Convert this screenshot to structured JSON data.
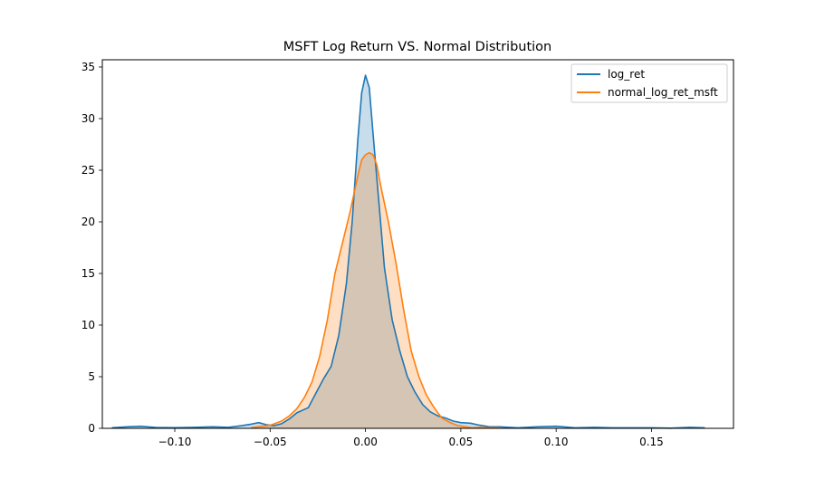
{
  "chart_data": {
    "type": "area",
    "title": "MSFT Log Return VS. Normal Distribution",
    "xlabel": "",
    "ylabel": "",
    "xlim": [
      -0.138,
      0.193
    ],
    "ylim": [
      0,
      35.7
    ],
    "x_ticks": [
      -0.1,
      -0.05,
      0.0,
      0.05,
      0.1,
      0.15
    ],
    "x_tick_labels": [
      "−0.10",
      "−0.05",
      "0.00",
      "0.05",
      "0.10",
      "0.15"
    ],
    "y_ticks": [
      0,
      5,
      10,
      15,
      20,
      25,
      30,
      35
    ],
    "y_tick_labels": [
      "0",
      "5",
      "10",
      "15",
      "20",
      "25",
      "30",
      "35"
    ],
    "grid": false,
    "legend_position": "top-right",
    "series": [
      {
        "name": "log_ret",
        "color": "#1f77b4",
        "fill": "#1f77b4",
        "points": [
          [
            -0.133,
            0.05
          ],
          [
            -0.125,
            0.15
          ],
          [
            -0.118,
            0.2
          ],
          [
            -0.11,
            0.08
          ],
          [
            -0.1,
            0.06
          ],
          [
            -0.09,
            0.1
          ],
          [
            -0.08,
            0.15
          ],
          [
            -0.072,
            0.1
          ],
          [
            -0.065,
            0.25
          ],
          [
            -0.06,
            0.4
          ],
          [
            -0.056,
            0.55
          ],
          [
            -0.052,
            0.35
          ],
          [
            -0.048,
            0.25
          ],
          [
            -0.044,
            0.45
          ],
          [
            -0.04,
            0.9
          ],
          [
            -0.036,
            1.5
          ],
          [
            -0.03,
            2.0
          ],
          [
            -0.026,
            3.4
          ],
          [
            -0.022,
            4.8
          ],
          [
            -0.018,
            6.0
          ],
          [
            -0.014,
            9.0
          ],
          [
            -0.01,
            14.0
          ],
          [
            -0.007,
            20.0
          ],
          [
            -0.004,
            28.0
          ],
          [
            -0.002,
            32.5
          ],
          [
            0.0,
            34.2
          ],
          [
            0.002,
            33.0
          ],
          [
            0.004,
            28.5
          ],
          [
            0.007,
            22.0
          ],
          [
            0.01,
            15.5
          ],
          [
            0.014,
            10.5
          ],
          [
            0.018,
            7.5
          ],
          [
            0.022,
            5.0
          ],
          [
            0.026,
            3.5
          ],
          [
            0.03,
            2.3
          ],
          [
            0.034,
            1.6
          ],
          [
            0.038,
            1.2
          ],
          [
            0.042,
            1.0
          ],
          [
            0.046,
            0.7
          ],
          [
            0.05,
            0.55
          ],
          [
            0.055,
            0.5
          ],
          [
            0.06,
            0.3
          ],
          [
            0.065,
            0.15
          ],
          [
            0.07,
            0.15
          ],
          [
            0.08,
            0.05
          ],
          [
            0.09,
            0.15
          ],
          [
            0.1,
            0.2
          ],
          [
            0.11,
            0.05
          ],
          [
            0.12,
            0.1
          ],
          [
            0.13,
            0.05
          ],
          [
            0.15,
            0.05
          ],
          [
            0.16,
            0.02
          ],
          [
            0.17,
            0.1
          ],
          [
            0.178,
            0.05
          ]
        ]
      },
      {
        "name": "normal_log_ret_msft",
        "color": "#ff7f0e",
        "fill": "#ff7f0e",
        "points": [
          [
            -0.06,
            0.05
          ],
          [
            -0.05,
            0.3
          ],
          [
            -0.044,
            0.7
          ],
          [
            -0.04,
            1.2
          ],
          [
            -0.036,
            1.9
          ],
          [
            -0.032,
            3.0
          ],
          [
            -0.028,
            4.5
          ],
          [
            -0.024,
            7.0
          ],
          [
            -0.02,
            10.5
          ],
          [
            -0.016,
            15.0
          ],
          [
            -0.012,
            18.0
          ],
          [
            -0.008,
            21.0
          ],
          [
            -0.004,
            24.5
          ],
          [
            -0.002,
            26.0
          ],
          [
            0.0,
            26.5
          ],
          [
            0.002,
            26.7
          ],
          [
            0.004,
            26.5
          ],
          [
            0.006,
            25.5
          ],
          [
            0.008,
            23.5
          ],
          [
            0.012,
            20.0
          ],
          [
            0.016,
            16.0
          ],
          [
            0.02,
            11.5
          ],
          [
            0.024,
            7.5
          ],
          [
            0.028,
            5.0
          ],
          [
            0.032,
            3.2
          ],
          [
            0.036,
            2.0
          ],
          [
            0.04,
            1.0
          ],
          [
            0.044,
            0.6
          ],
          [
            0.048,
            0.3
          ],
          [
            0.052,
            0.15
          ],
          [
            0.056,
            0.05
          ],
          [
            0.06,
            0.1
          ],
          [
            0.065,
            0.05
          ],
          [
            0.07,
            0.05
          ]
        ]
      }
    ]
  }
}
